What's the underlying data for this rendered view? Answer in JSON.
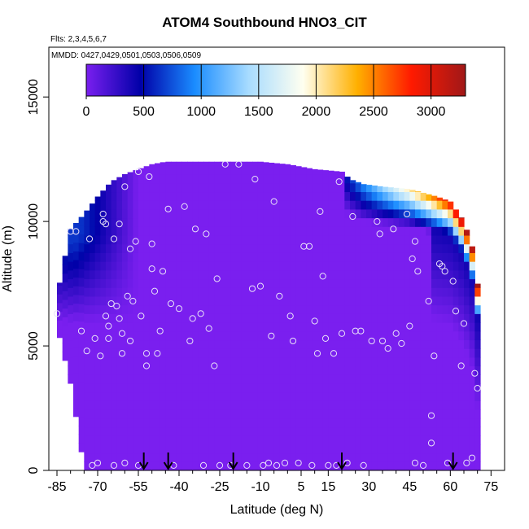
{
  "chart_data": {
    "type": "heatmap",
    "title": "ATOM4 Southbound HNO3_CIT",
    "subtitle_flights": "Flts: 2,3,4,5,6,7",
    "subtitle_dates": "MMDD: 0427,0429,0501,0503,0506,0509",
    "xlabel": "Latitude (deg N)",
    "ylabel": "Altitude (m)",
    "xlim": [
      -88,
      80
    ],
    "ylim": [
      0,
      17000
    ],
    "x_ticks": [
      -85,
      -70,
      -55,
      -40,
      -25,
      -10,
      5,
      15,
      30,
      45,
      60,
      75
    ],
    "x_minor_ticks": [
      -80,
      -75,
      -65,
      -60,
      -50,
      -45,
      -35,
      -30,
      -20,
      -15,
      -5,
      0,
      10,
      20,
      25,
      35,
      40,
      50,
      55,
      65,
      70
    ],
    "y_ticks": [
      0,
      5000,
      10000,
      15000
    ],
    "colorbar": {
      "range": [
        0,
        3300
      ],
      "ticks": [
        0,
        500,
        1000,
        1500,
        2000,
        2500,
        3000
      ],
      "bin_edges": [
        0,
        500,
        1000,
        1500,
        2000,
        2500,
        3000,
        3300
      ],
      "colors": [
        "#7a1fef",
        "#0000a8",
        "#1a8cff",
        "#a8dcff",
        "#fffff0",
        "#ffb000",
        "#ff1a00",
        "#a01818"
      ]
    },
    "curtain_top_altitude": {
      "lat": [
        -85,
        -80,
        -75,
        -70,
        -65,
        -60,
        -55,
        -50,
        -45,
        -40,
        -30,
        -20,
        -10,
        0,
        10,
        20,
        23,
        28,
        35,
        45,
        55,
        60,
        65,
        68,
        70
      ],
      "alt": [
        7000,
        9700,
        10300,
        11000,
        11600,
        11900,
        12100,
        12300,
        12400,
        12400,
        12400,
        12400,
        12400,
        12300,
        12100,
        12000,
        11700,
        11500,
        11400,
        11300,
        11000,
        10800,
        10000,
        9000,
        7500
      ]
    },
    "curtain_bottom_altitude": {
      "lat": [
        -85,
        -80,
        -77,
        -75,
        -70,
        -60,
        -40,
        -20,
        0,
        20,
        40,
        60,
        70
      ],
      "alt": [
        5800,
        3500,
        1500,
        0,
        0,
        0,
        0,
        0,
        0,
        0,
        0,
        0,
        0
      ]
    },
    "flight_markers_lat": [
      -53,
      -44,
      -20,
      20,
      61
    ],
    "observation_points": [
      [
        -85,
        6300
      ],
      [
        -80,
        9600
      ],
      [
        -78,
        9600
      ],
      [
        -76,
        5600
      ],
      [
        -74,
        4800
      ],
      [
        -73,
        9300
      ],
      [
        -72,
        200
      ],
      [
        -71,
        5300
      ],
      [
        -70,
        300
      ],
      [
        -69,
        4600
      ],
      [
        -68,
        10300
      ],
      [
        -68,
        10000
      ],
      [
        -67,
        9900
      ],
      [
        -67,
        6200
      ],
      [
        -66,
        5800
      ],
      [
        -66,
        5300
      ],
      [
        -65,
        6700
      ],
      [
        -64,
        9300
      ],
      [
        -64,
        200
      ],
      [
        -63,
        6600
      ],
      [
        -62,
        9900
      ],
      [
        -62,
        6100
      ],
      [
        -61,
        4700
      ],
      [
        -61,
        5500
      ],
      [
        -60,
        11400
      ],
      [
        -60,
        300
      ],
      [
        -59,
        7000
      ],
      [
        -58,
        5200
      ],
      [
        -58,
        8900
      ],
      [
        -57,
        6800
      ],
      [
        -56,
        9200
      ],
      [
        -55,
        12000
      ],
      [
        -55,
        200
      ],
      [
        -54,
        6200
      ],
      [
        -52,
        4200
      ],
      [
        -52,
        4700
      ],
      [
        -51,
        11800
      ],
      [
        -50,
        8100
      ],
      [
        -50,
        9100
      ],
      [
        -49,
        7200
      ],
      [
        -48,
        4700
      ],
      [
        -47,
        5600
      ],
      [
        -46,
        8000
      ],
      [
        -44,
        10500
      ],
      [
        -43,
        6700
      ],
      [
        -42,
        200
      ],
      [
        -40,
        6500
      ],
      [
        -38,
        10600
      ],
      [
        -36,
        5200
      ],
      [
        -35,
        6100
      ],
      [
        -34,
        9700
      ],
      [
        -32,
        6300
      ],
      [
        -31,
        200
      ],
      [
        -30,
        9500
      ],
      [
        -29,
        5700
      ],
      [
        -27,
        4200
      ],
      [
        -26,
        7700
      ],
      [
        -25,
        200
      ],
      [
        -23,
        12300
      ],
      [
        -21,
        200
      ],
      [
        -18,
        12300
      ],
      [
        -15,
        200
      ],
      [
        -13,
        7300
      ],
      [
        -12,
        11700
      ],
      [
        -10,
        7400
      ],
      [
        -9,
        200
      ],
      [
        -7,
        300
      ],
      [
        -6,
        5400
      ],
      [
        -5,
        10800
      ],
      [
        -4,
        200
      ],
      [
        -3,
        7000
      ],
      [
        -1,
        300
      ],
      [
        1,
        6200
      ],
      [
        2,
        5200
      ],
      [
        4,
        300
      ],
      [
        6,
        9000
      ],
      [
        8,
        9000
      ],
      [
        9,
        200
      ],
      [
        10,
        6000
      ],
      [
        11,
        4700
      ],
      [
        12,
        10400
      ],
      [
        13,
        7800
      ],
      [
        14,
        5300
      ],
      [
        15,
        200
      ],
      [
        17,
        4700
      ],
      [
        18,
        200
      ],
      [
        19,
        11600
      ],
      [
        20,
        5500
      ],
      [
        22,
        300
      ],
      [
        24,
        10200
      ],
      [
        25,
        5600
      ],
      [
        27,
        5600
      ],
      [
        28,
        200
      ],
      [
        31,
        5200
      ],
      [
        33,
        10000
      ],
      [
        34,
        9500
      ],
      [
        35,
        5200
      ],
      [
        37,
        4900
      ],
      [
        39,
        9700
      ],
      [
        40,
        5500
      ],
      [
        42,
        5100
      ],
      [
        44,
        10300
      ],
      [
        45,
        5800
      ],
      [
        46,
        8500
      ],
      [
        47,
        9200
      ],
      [
        47,
        300
      ],
      [
        48,
        8000
      ],
      [
        50,
        200
      ],
      [
        52,
        6800
      ],
      [
        53,
        2200
      ],
      [
        53,
        1100
      ],
      [
        54,
        4600
      ],
      [
        56,
        8300
      ],
      [
        57,
        8200
      ],
      [
        58,
        8000
      ],
      [
        59,
        300
      ],
      [
        61,
        7600
      ],
      [
        62,
        6400
      ],
      [
        64,
        4200
      ],
      [
        65,
        5900
      ],
      [
        66,
        300
      ],
      [
        68,
        500
      ],
      [
        69,
        3900
      ],
      [
        70,
        3300
      ]
    ]
  }
}
